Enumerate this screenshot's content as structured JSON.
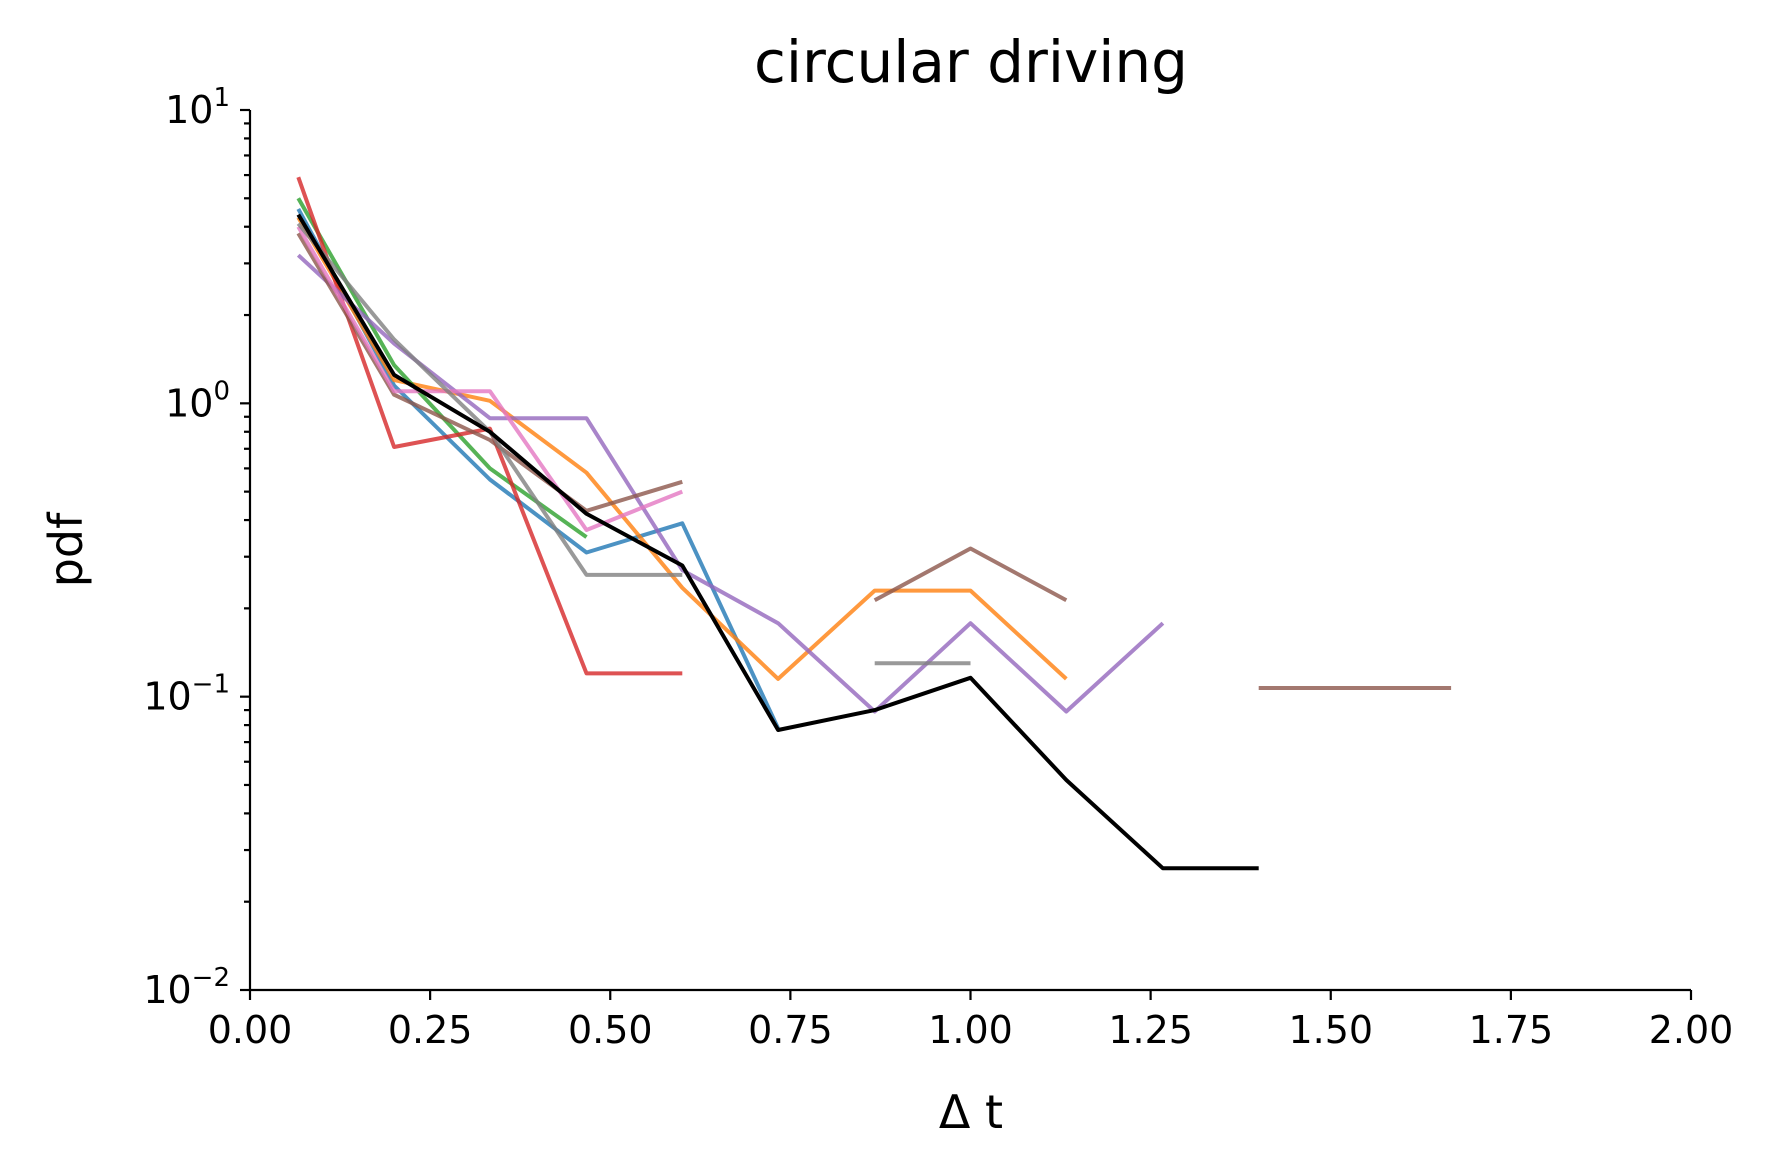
{
  "chart_data": {
    "type": "line",
    "title": "circular driving",
    "xlabel": "Δ t",
    "ylabel": "pdf",
    "xlim": [
      0,
      2
    ],
    "ylim": [
      0.01,
      10
    ],
    "yscale": "log",
    "grid": false,
    "legend": "none",
    "x_ticks": [
      {
        "value": 0,
        "label": "0.00"
      },
      {
        "value": 0.25,
        "label": "0.25"
      },
      {
        "value": 0.5,
        "label": "0.50"
      },
      {
        "value": 0.75,
        "label": "0.75"
      },
      {
        "value": 1.0,
        "label": "1.00"
      },
      {
        "value": 1.25,
        "label": "1.25"
      },
      {
        "value": 1.5,
        "label": "1.50"
      },
      {
        "value": 1.75,
        "label": "1.75"
      },
      {
        "value": 2.0,
        "label": "2.00"
      }
    ],
    "y_ticks": [
      {
        "value": 0.01,
        "base": "10",
        "exp": "−2"
      },
      {
        "value": 0.1,
        "base": "10",
        "exp": "−1"
      },
      {
        "value": 1,
        "base": "10",
        "exp": "0"
      },
      {
        "value": 10,
        "base": "10",
        "exp": "1"
      }
    ],
    "series": [
      {
        "color": "#1f77b4",
        "alpha": 0.8,
        "points": [
          [
            0.067,
            4.6
          ],
          [
            0.2,
            1.15
          ],
          [
            0.333,
            0.55
          ],
          [
            0.467,
            0.31
          ],
          [
            0.6,
            0.39
          ],
          [
            0.733,
            0.078
          ]
        ]
      },
      {
        "color": "#ff7f0e",
        "alpha": 0.8,
        "points": [
          [
            0.067,
            4.3
          ],
          [
            0.2,
            1.2
          ],
          [
            0.333,
            1.02
          ],
          [
            0.467,
            0.58
          ],
          [
            0.6,
            0.235
          ],
          [
            0.733,
            0.115
          ],
          [
            0.867,
            0.23
          ],
          [
            1.0,
            0.23
          ],
          [
            1.133,
            0.115
          ]
        ]
      },
      {
        "color": "#2ca02c",
        "alpha": 0.8,
        "points": [
          [
            0.067,
            5.0
          ],
          [
            0.2,
            1.35
          ],
          [
            0.333,
            0.6
          ],
          [
            0.467,
            0.35
          ]
        ]
      },
      {
        "color": "#d62728",
        "alpha": 0.8,
        "points": [
          [
            0.067,
            5.9
          ],
          [
            0.2,
            0.71
          ],
          [
            0.333,
            0.82
          ],
          [
            0.467,
            0.12
          ],
          [
            0.6,
            0.12
          ]
        ]
      },
      {
        "color": "#9467bd",
        "alpha": 0.8,
        "points": [
          [
            0.067,
            3.2
          ],
          [
            0.2,
            1.6
          ],
          [
            0.333,
            0.89
          ],
          [
            0.467,
            0.89
          ],
          [
            0.6,
            0.27
          ],
          [
            0.733,
            0.178
          ],
          [
            0.867,
            0.089
          ],
          [
            1.0,
            0.178
          ],
          [
            1.133,
            0.089
          ],
          [
            1.267,
            0.178
          ]
        ]
      },
      {
        "color": "#8c564b",
        "alpha": 0.8,
        "points": [
          [
            0.067,
            3.8
          ],
          [
            0.2,
            1.07
          ],
          [
            0.333,
            0.75
          ],
          [
            0.467,
            0.43
          ],
          [
            0.6,
            0.54
          ]
        ]
      },
      {
        "color": "#8c564b",
        "alpha": 0.8,
        "points": [
          [
            0.867,
            0.213
          ],
          [
            1.0,
            0.32
          ],
          [
            1.133,
            0.213
          ]
        ]
      },
      {
        "color": "#8c564b",
        "alpha": 0.8,
        "points": [
          [
            1.4,
            0.107
          ],
          [
            1.667,
            0.107
          ]
        ]
      },
      {
        "color": "#e377c2",
        "alpha": 0.8,
        "points": [
          [
            0.067,
            4.0
          ],
          [
            0.2,
            1.1
          ],
          [
            0.333,
            1.1
          ],
          [
            0.467,
            0.37
          ],
          [
            0.6,
            0.5
          ]
        ]
      },
      {
        "color": "#7f7f7f",
        "alpha": 0.8,
        "points": [
          [
            0.067,
            4.1
          ],
          [
            0.2,
            1.65
          ],
          [
            0.333,
            0.8
          ],
          [
            0.467,
            0.26
          ],
          [
            0.6,
            0.26
          ]
        ]
      },
      {
        "color": "#7f7f7f",
        "alpha": 0.8,
        "points": [
          [
            0.867,
            0.13
          ],
          [
            1.0,
            0.13
          ]
        ]
      },
      {
        "color": "#000000",
        "alpha": 1.0,
        "points": [
          [
            0.067,
            4.4
          ],
          [
            0.2,
            1.25
          ],
          [
            0.333,
            0.8
          ],
          [
            0.467,
            0.42
          ],
          [
            0.6,
            0.28
          ],
          [
            0.733,
            0.077
          ],
          [
            0.867,
            0.09
          ],
          [
            1.0,
            0.116
          ],
          [
            1.133,
            0.052
          ],
          [
            1.267,
            0.026
          ],
          [
            1.4,
            0.026
          ]
        ]
      }
    ]
  }
}
